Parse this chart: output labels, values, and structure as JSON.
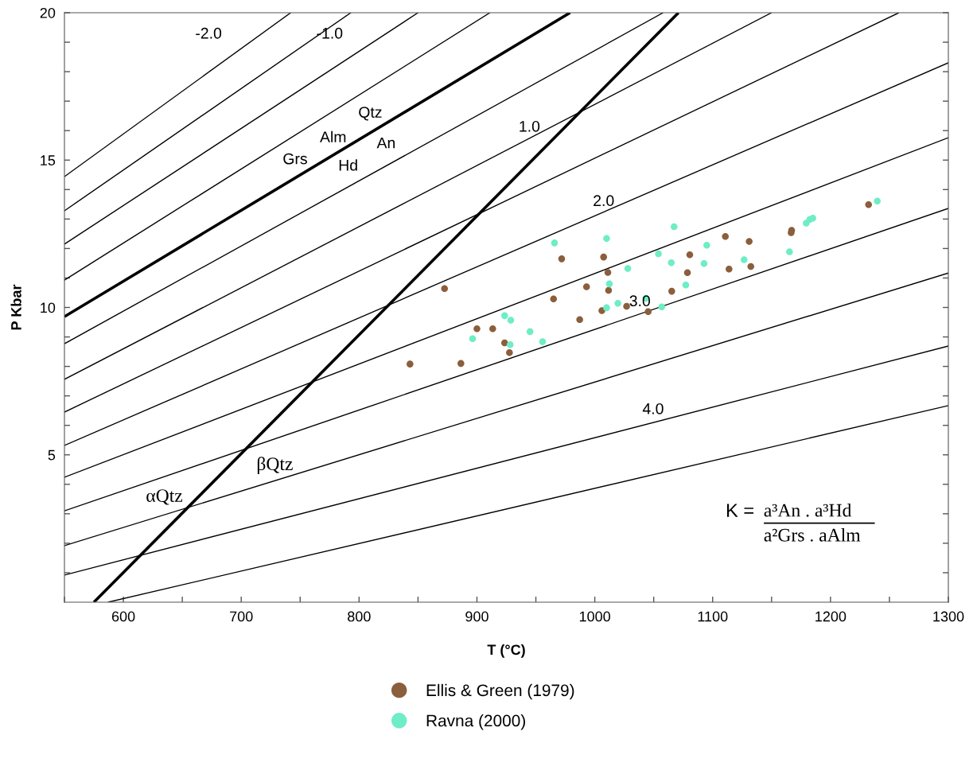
{
  "chart_data": {
    "type": "scatter",
    "xlabel": "T (°C)",
    "ylabel": "P Kbar",
    "xlim": [
      550,
      1300
    ],
    "ylim": [
      0,
      20
    ],
    "xticks": [
      {
        "value": 550,
        "label": null
      },
      600,
      {
        "value": 650,
        "label": null
      },
      700,
      {
        "value": 750,
        "label": null
      },
      800,
      {
        "value": 850,
        "label": null
      },
      900,
      {
        "value": 950,
        "label": null
      },
      1000,
      {
        "value": 1050,
        "label": null
      },
      1100,
      {
        "value": 1150,
        "label": null
      },
      1200,
      {
        "value": 1250,
        "label": null
      },
      1300
    ],
    "yticks": [
      {
        "value": 1,
        "label": null
      },
      {
        "value": 2,
        "label": null
      },
      {
        "value": 3,
        "label": null
      },
      {
        "value": 4,
        "label": null
      },
      5,
      {
        "value": 6,
        "label": null
      },
      {
        "value": 7,
        "label": null
      },
      {
        "value": 8,
        "label": null
      },
      {
        "value": 9,
        "label": null
      },
      10,
      {
        "value": 11,
        "label": null
      },
      {
        "value": 12,
        "label": null
      },
      {
        "value": 13,
        "label": null
      },
      {
        "value": 14,
        "label": null
      },
      15,
      {
        "value": 16,
        "label": null
      },
      {
        "value": 17,
        "label": null
      },
      {
        "value": 18,
        "label": null
      },
      {
        "value": 19,
        "label": null
      },
      20
    ],
    "grid": false,
    "legend": "bottom",
    "marker": "circle",
    "series": [
      {
        "type": "line",
        "marker": "none",
        "color": "#000000",
        "x": [
          550,
          979
        ],
        "values": [
          9.69,
          20
        ]
      },
      {
        "type": "line",
        "marker": "none",
        "color": "#000000",
        "x": [
          575,
          1071
        ],
        "values": [
          0,
          20
        ]
      },
      {
        "type": "line",
        "marker": "none",
        "color": "#000000",
        "x": [
          550,
          742
        ],
        "values": [
          14.44,
          20
        ]
      },
      {
        "type": "line",
        "marker": "none",
        "color": "#000000",
        "x": [
          550,
          793
        ],
        "values": [
          13.28,
          20
        ]
      },
      {
        "type": "line",
        "marker": "none",
        "color": "#000000",
        "x": [
          550,
          850
        ],
        "values": [
          12.15,
          20
        ]
      },
      {
        "type": "line",
        "marker": "none",
        "color": "#000000",
        "x": [
          550,
          911
        ],
        "values": [
          10.93,
          20
        ]
      },
      {
        "type": "line",
        "marker": "none",
        "color": "#000000",
        "x": [
          550,
          1058
        ],
        "values": [
          8.77,
          20
        ]
      },
      {
        "type": "line",
        "marker": "none",
        "color": "#000000",
        "x": [
          550,
          1150
        ],
        "values": [
          7.56,
          20
        ]
      },
      {
        "type": "line",
        "marker": "none",
        "color": "#000000",
        "x": [
          550,
          1258
        ],
        "values": [
          6.45,
          20
        ]
      },
      {
        "type": "line",
        "marker": "none",
        "color": "#000000",
        "x": [
          550,
          1300
        ],
        "values": [
          5.32,
          18.3
        ]
      },
      {
        "type": "line",
        "marker": "none",
        "color": "#000000",
        "x": [
          550,
          1300
        ],
        "values": [
          4.24,
          15.76
        ]
      },
      {
        "type": "line",
        "marker": "none",
        "color": "#000000",
        "x": [
          550,
          1300
        ],
        "values": [
          3.1,
          13.36
        ]
      },
      {
        "type": "line",
        "marker": "none",
        "color": "#000000",
        "x": [
          550,
          1300
        ],
        "values": [
          1.92,
          11.17
        ]
      },
      {
        "type": "line",
        "marker": "none",
        "color": "#000000",
        "x": [
          550,
          1300
        ],
        "values": [
          0.92,
          8.69
        ]
      },
      {
        "type": "line",
        "marker": "none",
        "color": "#000000",
        "x": [
          587,
          1300
        ],
        "values": [
          0,
          6.67
        ]
      },
      {
        "name": "Ellis & Green (1979)",
        "color": "#8b5e3c",
        "x": [
          872.5,
          971.9,
          1007.5,
          1011.1,
          1011.7,
          993,
          965,
          1006,
          987.2,
          900,
          913.4,
          923.5,
          927.6,
          843.2,
          886.4,
          1110.8,
          1131,
          1167,
          1166.6,
          1232.3,
          1080.6,
          1078.6,
          1113.9,
          1132.4,
          1065.3,
          1045.3,
          1027
        ],
        "values": [
          10.64,
          11.65,
          11.71,
          11.19,
          10.58,
          10.7,
          10.29,
          9.89,
          9.59,
          9.28,
          9.28,
          8.8,
          8.47,
          8.08,
          8.1,
          12.41,
          12.24,
          12.62,
          12.54,
          13.49,
          11.79,
          11.18,
          11.3,
          11.39,
          10.55,
          9.86,
          10.04
        ]
      },
      {
        "name": "Ravna (2000)",
        "color": "#6eedc6",
        "x": [
          965.8,
          1010,
          1012.4,
          1019.6,
          1010,
          923.5,
          928.7,
          945,
          896.3,
          928.2,
          955.7,
          1239.7,
          1179.4,
          1182.3,
          1185,
          1067.3,
          1095,
          1054,
          1064.9,
          1028,
          1092.7,
          1126.7,
          1165.2,
          1077.2,
          1056.8,
          1043.3
        ],
        "values": [
          12.19,
          12.34,
          10.8,
          10.14,
          9.99,
          9.72,
          9.57,
          9.18,
          8.94,
          8.74,
          8.84,
          13.61,
          12.86,
          12.98,
          13.03,
          12.74,
          12.11,
          11.82,
          11.52,
          11.32,
          11.49,
          11.62,
          11.89,
          10.76,
          10.02,
          10.31
        ]
      }
    ],
    "annotations": [
      "-2.0",
      "-1.0",
      "1.0",
      "2.0",
      "3.0",
      "4.0",
      "Qtz",
      "Alm",
      "An",
      "Grs",
      "Hd",
      "αQtz",
      "βQtz",
      "K =",
      "a³An . a³Hd",
      "a²Grs . aAlm"
    ]
  }
}
